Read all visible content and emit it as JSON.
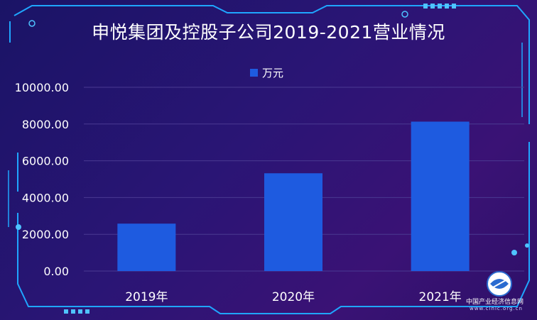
{
  "chart_data": {
    "type": "bar",
    "title": "申悦集团及控股子公司2019-2021营业情况",
    "categories": [
      "2019年",
      "2020年",
      "2021年"
    ],
    "series": [
      {
        "name": "万元",
        "values": [
          2580,
          5320,
          8130
        ]
      }
    ],
    "ylim": [
      0,
      10000
    ],
    "yticks": [
      "0.00",
      "2000.00",
      "4000.00",
      "6000.00",
      "8000.00",
      "10000.00"
    ],
    "ytick_values": [
      0,
      2000,
      4000,
      6000,
      8000,
      10000
    ],
    "grid": true,
    "legend_position": "top-center",
    "bar_color": "#1e5be0"
  },
  "watermark": {
    "name": "中国产业经济信息网",
    "url": "www.cinic.org.cn"
  },
  "colors": {
    "frame": "#1fa6ff",
    "grid": "#4a3a92"
  }
}
